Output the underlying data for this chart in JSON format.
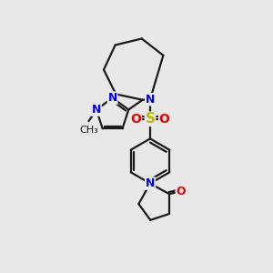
{
  "bg_color": "#e8e8e8",
  "bond_color": "#1a1a1a",
  "bond_width": 1.6,
  "atom_colors": {
    "N": "#0000ee",
    "O": "#ee0000",
    "S": "#bbbb00",
    "C": "#1a1a1a"
  },
  "font_size_atom": 9,
  "font_size_methyl": 8,
  "xlim": [
    0,
    10
  ],
  "ylim": [
    0,
    10
  ]
}
